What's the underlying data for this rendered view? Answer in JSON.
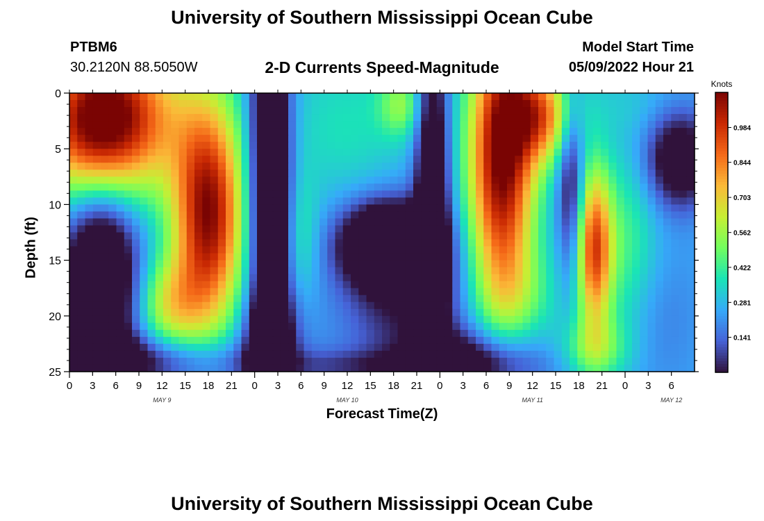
{
  "title": "University of Southern Mississippi Ocean Cube",
  "station": {
    "id": "PTBM6",
    "coords": "30.2120N  88.5050W"
  },
  "subtitle": "2-D Currents Speed-Magnitude",
  "model": {
    "label": "Model Start Time",
    "value": "05/09/2022 Hour 21"
  },
  "footer_title": "University of Southern Mississippi Ocean Cube",
  "colors": {
    "ramp": [
      "#30123b",
      "#4662d7",
      "#36aaf9",
      "#1ae4b6",
      "#72fe5e",
      "#c7ef34",
      "#fbb938",
      "#f56918",
      "#c92903",
      "#7a0403"
    ]
  },
  "chart_data": {
    "type": "heatmap",
    "xlabel": "Forecast Time(Z)",
    "ylabel": "Depth (ft)",
    "colorbar_label": "Knots",
    "x_range": [
      0,
      81
    ],
    "y_range": [
      0,
      25
    ],
    "y_ticks": [
      "0",
      "5",
      "10",
      "15",
      "20",
      "25"
    ],
    "x_ticks": [
      "0",
      "3",
      "6",
      "9",
      "12",
      "15",
      "18",
      "21",
      "0",
      "3",
      "6",
      "9",
      "12",
      "15",
      "18",
      "21",
      "0",
      "3",
      "6",
      "9",
      "12",
      "15",
      "18",
      "21",
      "0",
      "3",
      "6"
    ],
    "date_labels": [
      {
        "text": "MAY 9",
        "x": 12
      },
      {
        "text": "MAY 10",
        "x": 36
      },
      {
        "text": "MAY 11",
        "x": 60
      },
      {
        "text": "MAY 12",
        "x": 78
      }
    ],
    "colorbar_ticks": [
      "0.984",
      "0.844",
      "0.703",
      "0.562",
      "0.422",
      "0.281",
      "0.141"
    ],
    "colorbar_range": [
      0.0,
      1.125
    ],
    "features": [
      {
        "t": 3,
        "d": 3,
        "st": 5,
        "sd": 5,
        "v": 0.72
      },
      {
        "t": 8,
        "d": 2,
        "st": 6,
        "sd": 5,
        "v": 0.45
      },
      {
        "t": 18,
        "d": 11,
        "st": 3.2,
        "sd": 7,
        "v": 0.85
      },
      {
        "t": 13,
        "d": 19,
        "st": 3,
        "sd": 3,
        "v": 0.35
      },
      {
        "t": 4,
        "d": 16,
        "st": 3.5,
        "sd": 7,
        "v": -0.55
      },
      {
        "t": 3,
        "d": 24,
        "st": 14,
        "sd": 1.6,
        "v": -0.3
      },
      {
        "t": 26,
        "d": 8,
        "st": 1.8,
        "sd": 12,
        "v": -0.6
      },
      {
        "t": 26,
        "d": 22,
        "st": 2.5,
        "sd": 3,
        "v": -0.3
      },
      {
        "t": 36,
        "d": 3,
        "st": 6,
        "sd": 5,
        "v": 0.12
      },
      {
        "t": 43,
        "d": 1,
        "st": 2,
        "sd": 2,
        "v": 0.25
      },
      {
        "t": 30,
        "d": 13,
        "st": 1.6,
        "sd": 4,
        "v": 0.15
      },
      {
        "t": 41,
        "d": 13.5,
        "st": 4,
        "sd": 2.5,
        "v": -0.6
      },
      {
        "t": 44,
        "d": 18,
        "st": 6,
        "sd": 5,
        "v": -0.25
      },
      {
        "t": 52,
        "d": 24,
        "st": 6,
        "sd": 2,
        "v": -0.3
      },
      {
        "t": 47,
        "d": 8,
        "st": 1.5,
        "sd": 10,
        "v": -0.45
      },
      {
        "t": 56,
        "d": 6,
        "st": 3,
        "sd": 9,
        "v": 0.9
      },
      {
        "t": 61,
        "d": 2,
        "st": 3,
        "sd": 3,
        "v": 0.55
      },
      {
        "t": 58,
        "d": 18,
        "st": 4,
        "sd": 3,
        "v": 0.15
      },
      {
        "t": 65,
        "d": 8,
        "st": 1.2,
        "sd": 6,
        "v": -0.3
      },
      {
        "t": 68,
        "d": 14,
        "st": 1.6,
        "sd": 5,
        "v": 0.65
      },
      {
        "t": 72,
        "d": 14,
        "st": 3,
        "sd": 6,
        "v": 0.2
      },
      {
        "t": 79,
        "d": 6,
        "st": 3,
        "sd": 3,
        "v": -0.4
      },
      {
        "t": 76,
        "d": 20,
        "st": 4,
        "sd": 5,
        "v": -0.08
      },
      {
        "t": 68,
        "d": 23,
        "st": 3,
        "sd": 2,
        "v": 0.25
      },
      {
        "t": 72,
        "d": 1,
        "st": 5,
        "sd": 2,
        "v": 0.05
      },
      {
        "t": 40,
        "d": 24.5,
        "st": 12,
        "sd": 1,
        "v": -0.15
      }
    ],
    "base_value": 0.25
  }
}
